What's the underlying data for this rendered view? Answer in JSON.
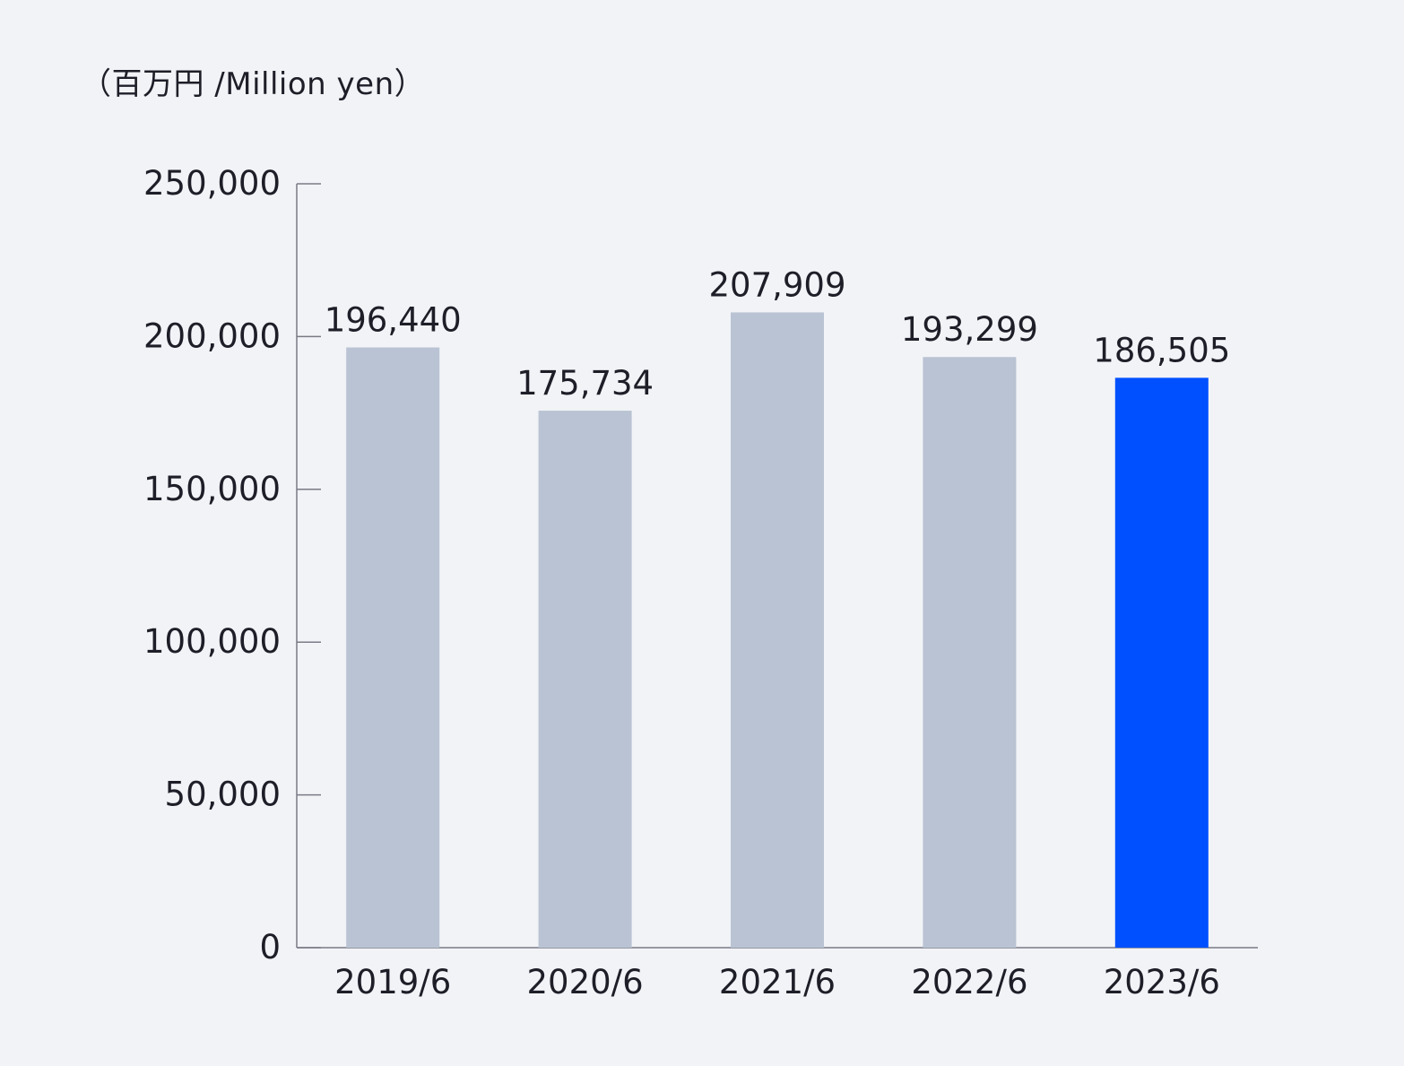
{
  "unit_label": "（百万円 /Million yen）",
  "colors": {
    "background": "#f2f3f7",
    "bar_default": "#b9c3d3",
    "bar_highlight": "#0050ff",
    "axis": "#7a7a85",
    "text": "#1e1e28"
  },
  "chart_data": {
    "type": "bar",
    "title": "",
    "xlabel": "",
    "ylabel": "（百万円 /Million yen）",
    "categories": [
      "2019/6",
      "2020/6",
      "2021/6",
      "2022/6",
      "2023/6"
    ],
    "values": [
      196440,
      175734,
      207909,
      193299,
      186505
    ],
    "value_labels": [
      "196,440",
      "175,734",
      "207,909",
      "193,299",
      "186,505"
    ],
    "highlight_index": 4,
    "ylim": [
      0,
      250000
    ],
    "yticks": [
      0,
      50000,
      100000,
      150000,
      200000,
      250000
    ],
    "ytick_labels": [
      "0",
      "50,000",
      "100,000",
      "150,000",
      "200,000",
      "250,000"
    ],
    "grid": false,
    "legend": "none"
  }
}
